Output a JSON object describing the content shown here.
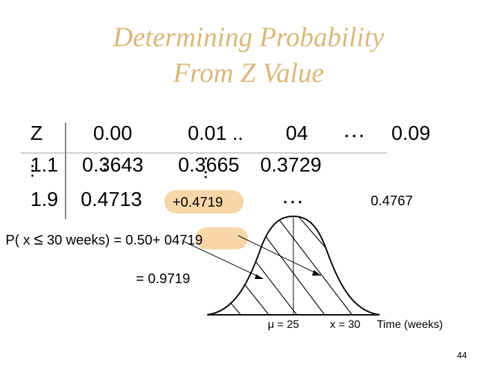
{
  "title": {
    "line1": "Determining Probability",
    "line2": "From Z Value"
  },
  "table": {
    "z_header": "Z",
    "col_000": "0.00",
    "col_001": "0.01 ..",
    "col_004": "04",
    "ellipsis": "…",
    "col_009": "0.09",
    "row1_z": "1.1",
    "row1_000": "0.3643",
    "row1_001": "0.3665",
    "row1_004": "0.3729",
    "row2_z": "1.9",
    "row2_000": "0.4713",
    "row2_001": "+0.4719",
    "row2_009": "0.4767"
  },
  "equation": {
    "lhs_prefix": "P( x",
    "leq_symbol": "≤",
    "lhs_suffix": "30 weeks) = 0.50+",
    "highlight_value": "04719",
    "result": "= 0.9719"
  },
  "graph": {
    "mu_label": "μ = 25",
    "x_label": "x = 30",
    "axis_label": "Time (weeks)"
  },
  "page_number": "44",
  "colors": {
    "title": "#d9b87a",
    "highlight": "#f7d6a8",
    "text": "#000000"
  }
}
